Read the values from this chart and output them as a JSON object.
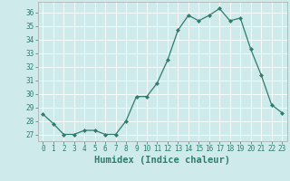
{
  "x": [
    0,
    1,
    2,
    3,
    4,
    5,
    6,
    7,
    8,
    9,
    10,
    11,
    12,
    13,
    14,
    15,
    16,
    17,
    18,
    19,
    20,
    21,
    22,
    23
  ],
  "y": [
    28.5,
    27.8,
    27.0,
    27.0,
    27.3,
    27.3,
    27.0,
    27.0,
    28.0,
    29.8,
    29.8,
    30.8,
    32.5,
    34.7,
    35.8,
    35.4,
    35.8,
    36.3,
    35.4,
    35.6,
    33.3,
    31.4,
    29.2,
    28.6
  ],
  "line_color": "#2e7d6e",
  "marker": "D",
  "marker_size": 2.0,
  "background_color": "#ceeaea",
  "grid_color": "#ffffff",
  "xlabel": "Humidex (Indice chaleur)",
  "ylim": [
    26.5,
    36.8
  ],
  "xlim": [
    -0.5,
    23.5
  ],
  "yticks": [
    27,
    28,
    29,
    30,
    31,
    32,
    33,
    34,
    35,
    36
  ],
  "xticks": [
    0,
    1,
    2,
    3,
    4,
    5,
    6,
    7,
    8,
    9,
    10,
    11,
    12,
    13,
    14,
    15,
    16,
    17,
    18,
    19,
    20,
    21,
    22,
    23
  ],
  "tick_fontsize": 5.5,
  "xlabel_fontsize": 7.5,
  "tick_color": "#2e7d6e",
  "axis_color": "#aaaaaa",
  "linewidth": 0.9
}
